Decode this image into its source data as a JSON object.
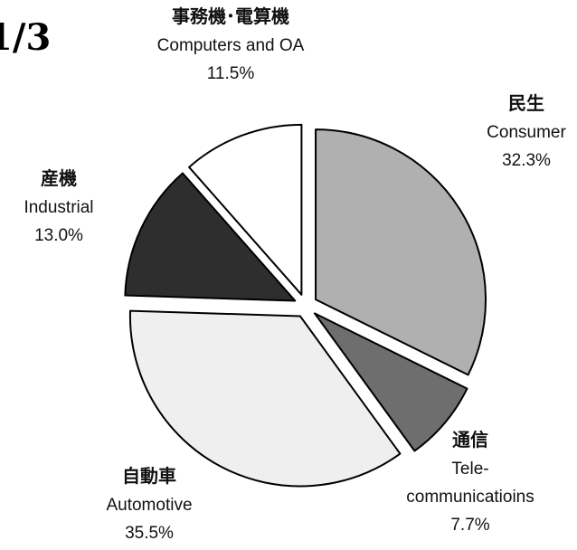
{
  "chart_data": {
    "type": "pie",
    "title": "1/3",
    "categories": [
      "Consumer",
      "Tele-communicatioins",
      "Automotive",
      "Industrial",
      "Computers and OA"
    ],
    "categories_ja": [
      "民生",
      "通信",
      "自動車",
      "産機",
      "事務機･電算機"
    ],
    "values": [
      32.3,
      7.7,
      35.5,
      13.0,
      11.5
    ],
    "value_labels": [
      "32.3%",
      "7.7%",
      "35.5%",
      "13.0%",
      "11.5%"
    ],
    "colors": [
      "#b0b0b0",
      "#6e6e6e",
      "#efefef",
      "#2e2e2e",
      "#ffffff"
    ]
  }
}
